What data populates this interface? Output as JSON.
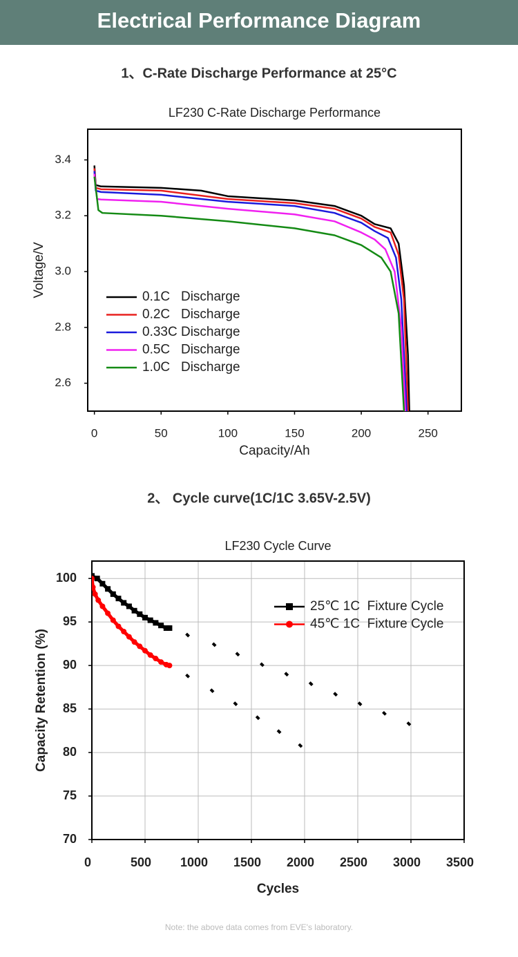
{
  "header": {
    "title": "Electrical Performance Diagram"
  },
  "sections": [
    "1、C-Rate Discharge Performance at 25°C",
    "2、 Cycle curve(1C/1C 3.65V-2.5V)"
  ],
  "chart_data": [
    {
      "type": "line",
      "title": "LF230 C-Rate Discharge Performance",
      "x_label": "Capacity/Ah",
      "y_label": "Voltage/V",
      "xlim": [
        -5,
        275
      ],
      "ylim": [
        2.5,
        3.51
      ],
      "xticks": [
        0,
        50,
        100,
        150,
        200,
        250
      ],
      "yticks": [
        2.6,
        2.8,
        {
          "value": 3,
          "label": "3.0"
        },
        3.2,
        3.4
      ],
      "grid": false,
      "legend": "lower left",
      "series": [
        {
          "name": "0.1C   Discharge",
          "color": "#000000",
          "x": [
            0,
            1,
            5,
            50,
            80,
            100,
            150,
            180,
            200,
            210,
            222,
            228,
            232,
            235,
            236
          ],
          "values": [
            3.38,
            3.31,
            3.305,
            3.3,
            3.29,
            3.27,
            3.255,
            3.235,
            3.2,
            3.17,
            3.155,
            3.1,
            2.95,
            2.7,
            2.5
          ]
        },
        {
          "name": "0.2C   Discharge",
          "color": "#e8201e",
          "x": [
            0,
            1,
            5,
            50,
            100,
            150,
            180,
            200,
            210,
            222,
            228,
            232,
            235
          ],
          "values": [
            3.37,
            3.3,
            3.295,
            3.29,
            3.26,
            3.245,
            3.225,
            3.19,
            3.16,
            3.14,
            3.06,
            2.9,
            2.5
          ]
        },
        {
          "name": "0.33C Discharge",
          "color": "#1a1adc",
          "x": [
            0,
            1,
            5,
            50,
            100,
            150,
            180,
            200,
            210,
            220,
            226,
            230,
            234
          ],
          "values": [
            3.36,
            3.29,
            3.285,
            3.275,
            3.25,
            3.235,
            3.21,
            3.175,
            3.145,
            3.12,
            3.05,
            2.9,
            2.5
          ]
        },
        {
          "name": "0.5C   Discharge",
          "color": "#f020f0",
          "x": [
            0,
            2,
            5,
            50,
            100,
            150,
            180,
            200,
            210,
            218,
            225,
            230,
            233
          ],
          "values": [
            3.35,
            3.26,
            3.258,
            3.25,
            3.225,
            3.205,
            3.18,
            3.14,
            3.115,
            3.08,
            3.0,
            2.8,
            2.5
          ]
        },
        {
          "name": "1.0C   Discharge",
          "color": "#148a14",
          "x": [
            0,
            3,
            6,
            50,
            100,
            150,
            180,
            200,
            215,
            222,
            228,
            232
          ],
          "values": [
            3.34,
            3.22,
            3.21,
            3.2,
            3.18,
            3.155,
            3.13,
            3.095,
            3.05,
            3.0,
            2.85,
            2.5
          ]
        }
      ]
    },
    {
      "type": "line",
      "title": "LF230 Cycle Curve",
      "x_label": "Cycles",
      "y_label": "Capacity Retention (%)",
      "xlim": [
        0,
        3500
      ],
      "ylim": [
        70,
        102
      ],
      "xticks": [
        0,
        500,
        1000,
        1500,
        2000,
        2500,
        3000,
        3500
      ],
      "yticks": [
        70,
        75,
        80,
        85,
        90,
        95,
        100
      ],
      "grid": true,
      "legend": "upper right",
      "series": [
        {
          "name": "25℃ 1C  Fixture Cycle",
          "color": "#000000",
          "marker": "square",
          "x": [
            0,
            50,
            100,
            150,
            200,
            250,
            300,
            350,
            400,
            450,
            500,
            550,
            600,
            650,
            700,
            730
          ],
          "values": [
            100.3,
            100,
            99.4,
            98.8,
            98.2,
            97.7,
            97.2,
            96.8,
            96.3,
            95.9,
            95.5,
            95.2,
            94.9,
            94.6,
            94.3,
            94.3
          ],
          "trend_x": [
            900,
            1150,
            1370,
            1600,
            1830,
            2060,
            2290,
            2520,
            2750,
            2980
          ],
          "trend_values": [
            93.5,
            92.4,
            91.3,
            90.1,
            89,
            87.9,
            86.7,
            85.6,
            84.5,
            83.3
          ]
        },
        {
          "name": "45℃ 1C  Fixture Cycle",
          "color": "#ff0000",
          "marker": "circle",
          "x": [
            0,
            10,
            30,
            60,
            100,
            150,
            200,
            250,
            300,
            350,
            400,
            450,
            500,
            550,
            600,
            650,
            700,
            730
          ],
          "values": [
            100,
            99,
            98.2,
            97.5,
            96.8,
            96,
            95.2,
            94.5,
            93.9,
            93.3,
            92.7,
            92.2,
            91.7,
            91.2,
            90.8,
            90.4,
            90.1,
            90
          ],
          "trend_x": [
            900,
            1130,
            1350,
            1560,
            1760,
            1960
          ],
          "trend_values": [
            88.8,
            87.1,
            85.6,
            84,
            82.4,
            80.8
          ]
        }
      ]
    }
  ],
  "note": "Note: the above data comes from EVE's laboratory."
}
